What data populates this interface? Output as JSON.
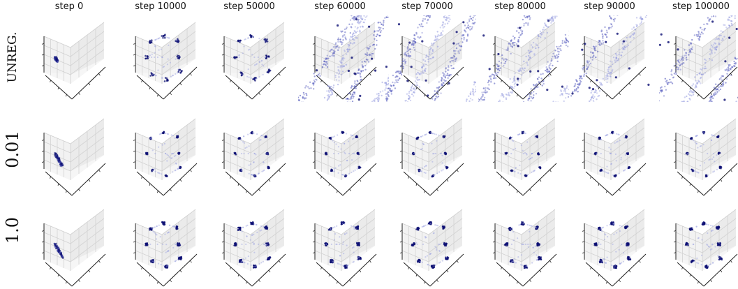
{
  "chart_data": {
    "type": "scatter",
    "columns": [
      "step 0",
      "step 10000",
      "step 50000",
      "step 60000",
      "step 70000",
      "step 80000",
      "step 90000",
      "step 100000"
    ],
    "rows": [
      "UNREG.",
      "0.01",
      "1.0"
    ],
    "grid": true,
    "colors": {
      "point_dark": "#0c0f73",
      "point_light": "#9aa0e0",
      "pane": "#f2f2f2",
      "gridline": "#d2d2d2",
      "axis": "#222222"
    }
  }
}
